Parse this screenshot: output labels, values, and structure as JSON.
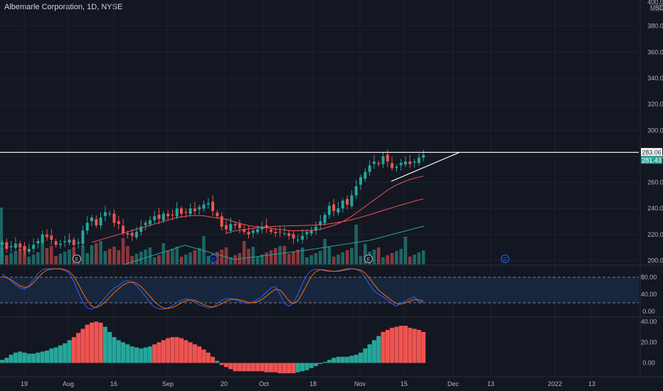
{
  "header": {
    "title": "Albemarle Corporation, 1D, NYSE"
  },
  "price_axis": {
    "currency": "USD",
    "top_label": "400.00"
  },
  "badges": {
    "resistance": "283.06",
    "last_price": "281.43"
  },
  "markers": {
    "dividend": "D",
    "earnings": "E"
  },
  "colors": {
    "background": "#131722",
    "up": "#26a69a",
    "down": "#ef5350",
    "grid": "#1e222d"
  },
  "chart_data": [
    {
      "type": "candlestick",
      "title": "Albemarle Corporation, 1D, NYSE",
      "y_ticks": [
        200,
        220,
        240,
        260,
        280,
        300,
        320,
        340,
        360,
        380
      ],
      "y_tick_labels": [
        "200.00",
        "220.00",
        "240.00",
        "260.00",
        "280.00",
        "300.00",
        "320.00",
        "340.00",
        "360.00",
        "380.00"
      ],
      "ylim": [
        197,
        400
      ],
      "x_tick_labels": [
        "19",
        "Aug",
        "16",
        "Sep",
        "20",
        "Oct",
        "18",
        "Nov",
        "15",
        "Dec",
        "13",
        "2022",
        "13"
      ],
      "horizontal_line": 283.06,
      "trendline": [
        [
          261,
          283
        ],
        [
          285,
          283
        ]
      ],
      "closes": [
        214,
        209,
        211,
        213,
        210,
        208,
        209,
        212,
        215,
        220,
        218,
        216,
        212,
        213,
        215,
        216,
        212,
        214,
        223,
        229,
        233,
        227,
        233,
        237,
        236,
        229,
        228,
        221,
        220,
        219,
        222,
        226,
        229,
        231,
        234,
        232,
        236,
        234,
        235,
        240,
        236,
        237,
        240,
        238,
        241,
        243,
        244,
        238,
        234,
        226,
        224,
        228,
        227,
        225,
        222,
        220,
        223,
        224,
        226,
        225,
        222,
        221,
        222,
        221,
        219,
        217,
        216,
        219,
        222,
        223,
        226,
        230,
        235,
        242,
        238,
        240,
        246,
        243,
        250,
        257,
        264,
        268,
        273,
        276,
        274,
        280,
        276,
        271,
        272,
        275,
        276,
        274,
        276,
        279,
        281
      ],
      "ma_fast": [
        null,
        null,
        null,
        null,
        null,
        null,
        null,
        null,
        null,
        null,
        null,
        null,
        null,
        null,
        null,
        null,
        null,
        null,
        null,
        null,
        214,
        215,
        216,
        217,
        218,
        219,
        220,
        221,
        222,
        223,
        224,
        225,
        226,
        227,
        228,
        229,
        230,
        231,
        232,
        233,
        233.5,
        234,
        234.5,
        234.5,
        234.5,
        234.3,
        233.8,
        233.2,
        232.7,
        232.2,
        231.7,
        230.6,
        229.5,
        228.5,
        227.7,
        226.8,
        226.3,
        225.9,
        225.5,
        225.1,
        224.7,
        224.2,
        223.8,
        223.5,
        223.1,
        222.9,
        222.9,
        223,
        223.1,
        223.2,
        223.4,
        224,
        224.9,
        226,
        227,
        228.4,
        230,
        232,
        234,
        236.5,
        239,
        241.5,
        244,
        246.5,
        249,
        251.5,
        254,
        256.2,
        258,
        259.5,
        261,
        262.2,
        263.2,
        264,
        264.8
      ],
      "ma_mid": [
        null,
        null,
        null,
        null,
        null,
        null,
        null,
        null,
        null,
        null,
        null,
        null,
        null,
        null,
        null,
        null,
        null,
        null,
        null,
        null,
        null,
        null,
        null,
        null,
        null,
        null,
        null,
        null,
        null,
        null,
        null,
        null,
        null,
        null,
        null,
        null,
        null,
        null,
        null,
        null,
        null,
        null,
        null,
        null,
        null,
        null,
        null,
        null,
        null,
        null,
        221,
        222,
        222.8,
        223.3,
        223.8,
        224.3,
        224.8,
        225.2,
        225.5,
        225.8,
        226,
        226.3,
        226.5,
        226.6,
        226.7,
        226.8,
        226.8,
        226.9,
        227,
        227.1,
        227.2,
        227.5,
        227.8,
        228.2,
        228.7,
        229.3,
        229.9,
        230.6,
        231.4,
        232.3,
        233.2,
        234.2,
        235.2,
        236.3,
        237.4,
        238.4,
        239.5,
        240.5,
        241.6,
        242.6,
        243.6,
        244.6,
        245.6,
        246.5,
        247.4
      ],
      "ma_slow": [
        null,
        null,
        null,
        null,
        null,
        null,
        null,
        null,
        null,
        null,
        null,
        null,
        null,
        null,
        null,
        null,
        null,
        null,
        null,
        null,
        null,
        null,
        null,
        null,
        null,
        null,
        null,
        null,
        null,
        null,
        null,
        null,
        null,
        null,
        null,
        null,
        null,
        null,
        null,
        null,
        null,
        null,
        null,
        null,
        null,
        null,
        null,
        null,
        null,
        null,
        null,
        null,
        null,
        null,
        null,
        null,
        null,
        null,
        null,
        null,
        null,
        null,
        null,
        null,
        null,
        null,
        null,
        null,
        null,
        null,
        null,
        null,
        null,
        null,
        null,
        null,
        null,
        null,
        null,
        null,
        null,
        null,
        null,
        null,
        null,
        null,
        null,
        null,
        null,
        null,
        null,
        null,
        null,
        null,
        null
      ]
    },
    {
      "type": "line",
      "name": "stochastic",
      "y_tick_labels": [
        "0.00",
        "40.00",
        "80.00"
      ],
      "ylim": [
        -10,
        105
      ],
      "bands": [
        20,
        80
      ],
      "k": [
        88,
        80,
        72,
        62,
        55,
        52,
        60,
        75,
        88,
        98,
        100,
        100,
        100,
        99,
        96,
        88,
        70,
        45,
        22,
        8,
        5,
        10,
        20,
        32,
        45,
        55,
        60,
        70,
        72,
        68,
        60,
        48,
        35,
        20,
        10,
        6,
        5,
        8,
        14,
        20,
        26,
        30,
        27,
        22,
        15,
        12,
        8,
        10,
        18,
        26,
        30,
        30,
        28,
        24,
        20,
        18,
        22,
        28,
        35,
        45,
        55,
        58,
        40,
        18,
        12,
        20,
        40,
        65,
        85,
        96,
        99,
        98,
        95,
        94,
        94,
        95,
        98,
        100,
        100,
        99,
        94,
        80,
        62,
        48,
        40,
        34,
        26,
        18,
        12,
        20,
        24,
        30,
        34,
        22,
        20
      ],
      "d": [
        82,
        79,
        74,
        67,
        60,
        56,
        58,
        67,
        79,
        90,
        97,
        99,
        100,
        100,
        98,
        93,
        82,
        64,
        43,
        26,
        12,
        9,
        14,
        22,
        33,
        44,
        53,
        62,
        67,
        69,
        66,
        58,
        47,
        35,
        23,
        14,
        8,
        7,
        9,
        14,
        20,
        25,
        27,
        26,
        21,
        16,
        12,
        10,
        13,
        18,
        24,
        28,
        29,
        27,
        24,
        21,
        20,
        23,
        28,
        36,
        45,
        52,
        50,
        38,
        25,
        18,
        25,
        43,
        63,
        82,
        93,
        98,
        97,
        95,
        94,
        94,
        96,
        98,
        100,
        99,
        97,
        90,
        77,
        63,
        50,
        41,
        33,
        25,
        18,
        17,
        20,
        24,
        28,
        27,
        24
      ]
    },
    {
      "type": "bar",
      "name": "histogram",
      "y_tick_labels": [
        "0.00",
        "20.00",
        "40.00"
      ],
      "ylim": [
        -12,
        43
      ],
      "values": [
        3,
        5,
        8,
        10,
        11,
        10,
        9,
        9,
        10,
        11,
        12,
        14,
        15,
        17,
        19,
        22,
        25,
        29,
        33,
        37,
        39,
        40,
        39,
        35,
        30,
        25,
        22,
        20,
        18,
        16,
        15,
        14,
        15,
        16,
        18,
        20,
        22,
        24,
        25,
        25,
        24,
        22,
        20,
        18,
        16,
        13,
        10,
        6,
        2,
        -2,
        -4,
        -6,
        -8,
        -8,
        -8,
        -8,
        -8,
        -8,
        -8,
        -9,
        -9,
        -9,
        -10,
        -10,
        -10,
        -10,
        -9,
        -8,
        -7,
        -5,
        -3,
        -1,
        1,
        3,
        5,
        6,
        6,
        6,
        7,
        8,
        10,
        14,
        18,
        22,
        26,
        30,
        32,
        34,
        35,
        36,
        36,
        34,
        33,
        32,
        30
      ],
      "highlight": [
        [
          16,
          22
        ],
        [
          34,
          47
        ],
        [
          49,
          65
        ],
        [
          85,
          94
        ]
      ],
      "highlight_color": "#ef5350",
      "base_color": "#26a69a"
    }
  ]
}
